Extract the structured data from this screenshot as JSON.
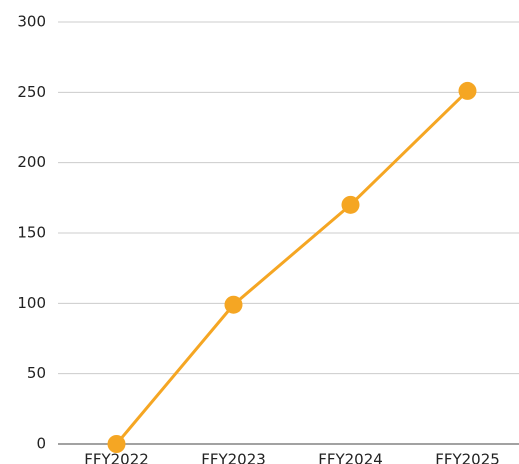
{
  "chart_data": {
    "type": "line",
    "categories": [
      "FFY2022",
      "FFY2023",
      "FFY2024",
      "FFY2025"
    ],
    "series": [
      {
        "color": "#f5a623",
        "values": [
          0,
          99,
          170,
          251
        ]
      }
    ],
    "ylim": [
      0,
      300
    ],
    "yticks": [
      0,
      50,
      100,
      150,
      200,
      250,
      300
    ],
    "grid": true
  }
}
